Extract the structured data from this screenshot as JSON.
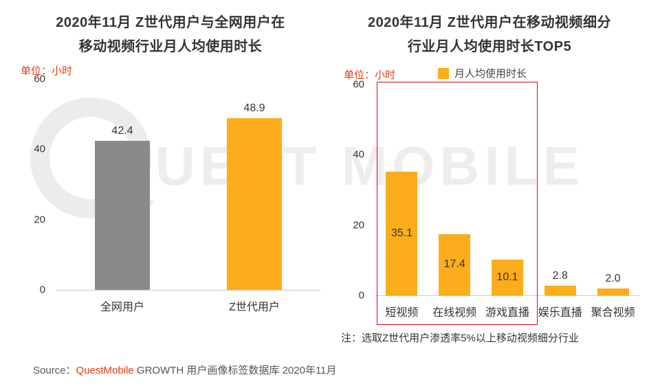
{
  "watermark": {
    "text": "UEST MOBILE"
  },
  "charts": [
    {
      "title_line1": "2020年11月 Z世代用户与全网用户在",
      "title_line2": "移动视频行业月人均使用时长",
      "unit": "单位：小时"
    },
    {
      "title_line1": "2020年11月 Z世代用户在移动视频细分",
      "title_line2": "行业月人均使用时长TOP5",
      "unit": "单位：小时",
      "legend": "月人均使用时长",
      "note": "注：选取Z世代用户渗透率5%以上移动视频细分行业"
    }
  ],
  "chart_data": [
    {
      "type": "bar",
      "title": "2020年11月 Z世代用户与全网用户在移动视频行业月人均使用时长",
      "categories": [
        "全网用户",
        "Z世代用户"
      ],
      "values": [
        42.4,
        48.9
      ],
      "bar_colors": [
        "#8A8A8A",
        "#FBAD1B"
      ],
      "ylabel": "单位：小时",
      "ylim": [
        0,
        60
      ],
      "yticks": [
        0,
        20,
        40,
        60
      ],
      "grid": false,
      "labels_inside": false
    },
    {
      "type": "bar",
      "title": "2020年11月 Z世代用户在移动视频细分行业月人均使用时长TOP5",
      "series_name": "月人均使用时长",
      "categories": [
        "短视频",
        "在线视频",
        "游戏直播",
        "娱乐直播",
        "聚合视频"
      ],
      "values": [
        35.1,
        17.4,
        10.1,
        2.8,
        2.0
      ],
      "bar_color": "#FBAD1B",
      "ylabel": "单位：小时",
      "ylim": [
        0,
        60
      ],
      "yticks": [
        0,
        20,
        40,
        60
      ],
      "grid": false,
      "labels_inside": true,
      "legend_position": "top",
      "highlight": {
        "categories": [
          "短视频",
          "在线视频",
          "游戏直播"
        ],
        "box_color": "#E60012"
      },
      "note": "注：选取Z世代用户渗透率5%以上移动视频细分行业"
    }
  ],
  "source": {
    "prefix": "Source：",
    "brand": "QuestMobile",
    "suffix": " GROWTH 用户画像标签数据库 2020年11月"
  },
  "colors": {
    "orange": "#FBAD1B",
    "gray": "#8A8A8A",
    "red": "#E8380D",
    "box_red": "#E60012",
    "watermark": "#EDEDED"
  }
}
